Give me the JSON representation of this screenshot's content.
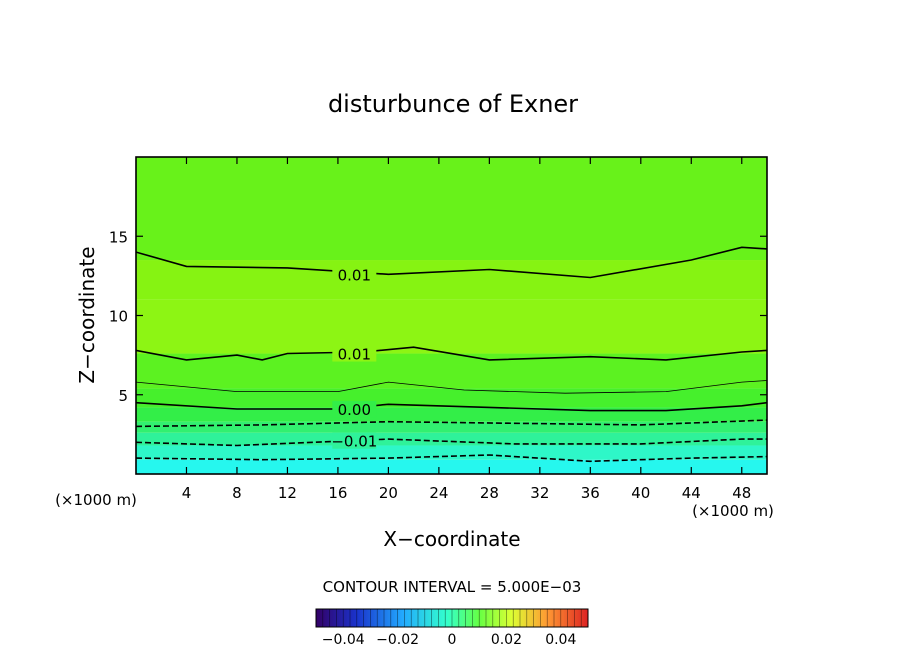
{
  "chart_data": {
    "type": "heatmap",
    "title": "disturbunce of Exner",
    "xlabel": "X−coordinate",
    "ylabel": "Z−coordinate",
    "x_unit_left": "(×1000 m)",
    "x_unit_right": "(×1000 m)",
    "xlim": [
      0,
      50
    ],
    "ylim": [
      0,
      20
    ],
    "x_ticks": [
      4,
      8,
      12,
      16,
      20,
      24,
      28,
      32,
      36,
      40,
      44,
      48
    ],
    "y_ticks": [
      5,
      10,
      15
    ],
    "contour_interval_text": "CONTOUR INTERVAL = 5.000E−03",
    "colorbar": {
      "range": [
        -0.05,
        0.05
      ],
      "tick_values": [
        -0.04,
        -0.02,
        0,
        0.02,
        0.04
      ],
      "tick_labels": [
        "−0.04",
        "−0.02",
        "0",
        "0.02",
        "0.04"
      ]
    },
    "contour_labels": [
      {
        "text": "0.01",
        "x": 17.3,
        "z": 12.6
      },
      {
        "text": "0.01",
        "x": 17.3,
        "z": 7.6
      },
      {
        "text": "0.00",
        "x": 17.3,
        "z": 4.1
      },
      {
        "text": "−0.01",
        "x": 17.3,
        "z": 2.1
      }
    ],
    "contours": [
      {
        "level": 0.01,
        "style": "solid",
        "x": [
          0,
          4,
          12,
          20,
          28,
          36,
          44,
          48,
          50
        ],
        "z": [
          14.0,
          13.1,
          13.0,
          12.6,
          12.9,
          12.4,
          13.5,
          14.3,
          14.2
        ]
      },
      {
        "level": 0.01,
        "style": "solid",
        "x": [
          0,
          4,
          8,
          10,
          12,
          18,
          22,
          28,
          36,
          42,
          48,
          50
        ],
        "z": [
          7.8,
          7.2,
          7.5,
          7.2,
          7.6,
          7.7,
          8.0,
          7.2,
          7.4,
          7.2,
          7.7,
          7.8
        ]
      },
      {
        "level": 0.005,
        "style": "thin",
        "x": [
          0,
          8,
          16,
          20,
          26,
          34,
          42,
          48,
          50
        ],
        "z": [
          5.8,
          5.2,
          5.2,
          5.8,
          5.3,
          5.1,
          5.2,
          5.8,
          5.9
        ]
      },
      {
        "level": 0.0,
        "style": "solid",
        "x": [
          0,
          8,
          16,
          20,
          28,
          36,
          42,
          48,
          50
        ],
        "z": [
          4.5,
          4.1,
          4.1,
          4.4,
          4.2,
          4.0,
          4.0,
          4.3,
          4.5
        ]
      },
      {
        "level": -0.005,
        "style": "dashed",
        "x": [
          0,
          10,
          20,
          30,
          40,
          50
        ],
        "z": [
          3.0,
          3.1,
          3.3,
          3.2,
          3.1,
          3.4
        ]
      },
      {
        "level": -0.01,
        "style": "dashed",
        "x": [
          0,
          8,
          20,
          30,
          40,
          48,
          50
        ],
        "z": [
          2.0,
          1.8,
          2.2,
          1.9,
          1.9,
          2.2,
          2.2
        ]
      },
      {
        "level": -0.015,
        "style": "dashed",
        "x": [
          0,
          10,
          20,
          28,
          36,
          44,
          50
        ],
        "z": [
          1.0,
          0.9,
          1.0,
          1.2,
          0.8,
          1.0,
          1.1
        ]
      }
    ],
    "color_bands": [
      {
        "zmin": 0,
        "zmax": 0.9,
        "color": "#26f7ee"
      },
      {
        "zmin": 0.9,
        "zmax": 1.8,
        "color": "#2ef7c8"
      },
      {
        "zmin": 1.8,
        "zmax": 2.6,
        "color": "#2ff29a"
      },
      {
        "zmin": 2.6,
        "zmax": 3.3,
        "color": "#32f070"
      },
      {
        "zmin": 3.3,
        "zmax": 4.2,
        "color": "#33ee48"
      },
      {
        "zmin": 4.2,
        "zmax": 5.4,
        "color": "#46f02c"
      },
      {
        "zmin": 5.4,
        "zmax": 7.6,
        "color": "#5cf221"
      },
      {
        "zmin": 7.6,
        "zmax": 11.0,
        "color": "#8df514"
      },
      {
        "zmin": 11.0,
        "zmax": 13.5,
        "color": "#86f312"
      },
      {
        "zmin": 13.5,
        "zmax": 20,
        "color": "#68f21a"
      }
    ],
    "grid": false
  }
}
